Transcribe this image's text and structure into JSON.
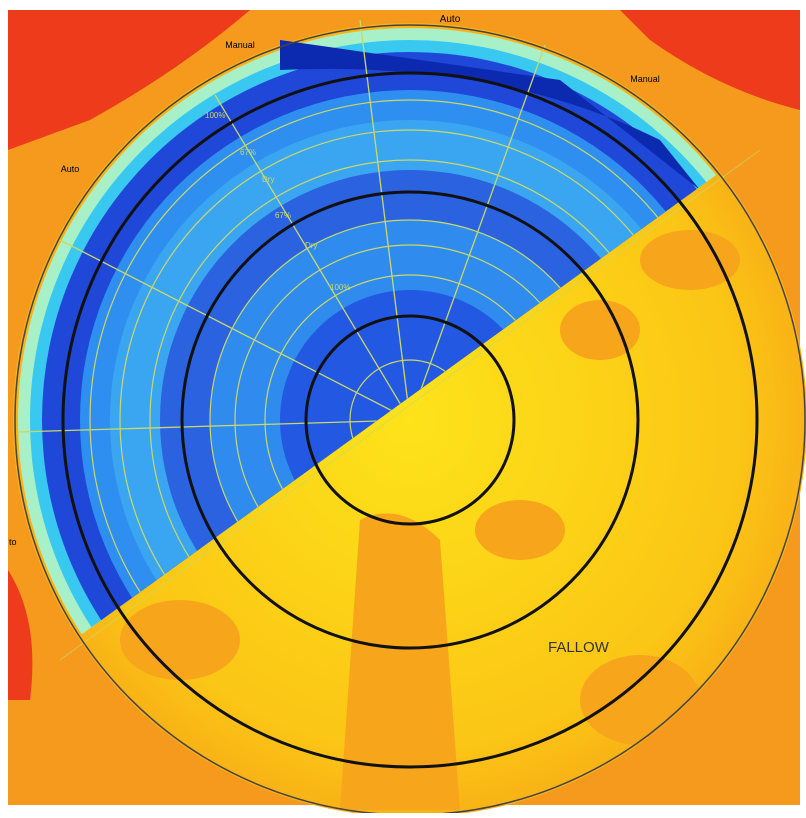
{
  "zones": {
    "top": "Auto",
    "top_left": "Manual",
    "top_right": "Manual",
    "left": "Auto",
    "left_edge": "to",
    "fallow": "FALLOW"
  },
  "ring_labels": [
    "Dry",
    "Dry",
    "67%",
    "67%",
    "100%",
    "100%"
  ]
}
